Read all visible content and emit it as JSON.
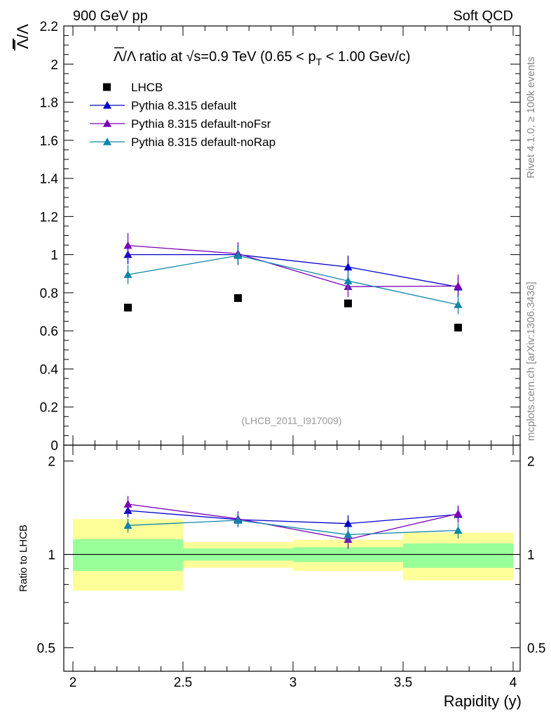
{
  "header": {
    "left": "900 GeV pp",
    "right": "Soft QCD"
  },
  "side_labels": {
    "rivet": "Rivet 4.1.0, ≥ 100k events",
    "mcplots": "mcplots.cern.ch [arXiv:1306.3436]"
  },
  "chart_data": [
    {
      "type": "scatter",
      "panel": "main",
      "title": "Λ̄/Λ ratio at √s=0.9 TeV (0.65 < p_T < 1.00 Gev/c)",
      "title_parts": {
        "lead": "Λ",
        "slash": "/Λ ratio at ",
        "root": "√",
        "s_rest": "s=0.9 TeV (0.65 < p",
        "sub": "T",
        "tail": " < 1.00 Gev/c)"
      },
      "ylabel": "Λ̄/Λ",
      "ylabel_parts": {
        "num": "Λ",
        "den": "/Λ"
      },
      "watermark": "(LHCB_2011_I917009)",
      "ylim": [
        0,
        2.2
      ],
      "y_ticks": [
        "0",
        "0.2",
        "0.4",
        "0.6",
        "0.8",
        "1",
        "1.2",
        "1.4",
        "1.6",
        "1.8",
        "2",
        "2.2"
      ],
      "legend_position": "top-left",
      "series": [
        {
          "name": "LHCB",
          "marker": "square",
          "color": "#000000",
          "x": [
            2.25,
            2.75,
            3.25,
            3.75
          ],
          "y": [
            0.722,
            0.772,
            0.744,
            0.617
          ],
          "err": [
            0.0,
            0.0,
            0.0,
            0.0
          ]
        },
        {
          "name": "Pythia 8.315 default",
          "marker": "triangle",
          "color": "#0000cc",
          "x": [
            2.25,
            2.75,
            3.25,
            3.75
          ],
          "y": [
            1.0,
            1.0,
            0.935,
            0.83
          ],
          "err": [
            0.05,
            0.05,
            0.06,
            0.05
          ]
        },
        {
          "name": "Pythia 8.315 default-noFsr",
          "marker": "triangle",
          "color": "#7a00b8",
          "x": [
            2.25,
            2.75,
            3.25,
            3.75
          ],
          "y": [
            1.048,
            1.005,
            0.832,
            0.835
          ],
          "err": [
            0.065,
            0.06,
            0.055,
            0.06
          ]
        },
        {
          "name": "Pythia 8.315 default-noRap",
          "marker": "triangle",
          "color": "#0f86a8",
          "x": [
            2.25,
            2.75,
            3.25,
            3.75
          ],
          "y": [
            0.895,
            0.995,
            0.862,
            0.737
          ],
          "err": [
            0.05,
            0.05,
            0.05,
            0.05
          ]
        }
      ]
    },
    {
      "type": "scatter",
      "panel": "ratio",
      "ylabel": "Ratio to LHCB",
      "xlabel": "Rapidity (y)",
      "xlim": [
        2,
        4
      ],
      "ylim": [
        0.42,
        2.25
      ],
      "y_scale": "log",
      "x_ticks": [
        "2",
        "2.5",
        "3",
        "3.5",
        "4"
      ],
      "y_ticks": [
        "0.5",
        "1",
        "2"
      ],
      "reference_line": 1,
      "bands": [
        {
          "x0": 2.0,
          "x1": 2.5,
          "green": [
            0.885,
            1.12
          ],
          "yellow": [
            0.765,
            1.3
          ]
        },
        {
          "x0": 2.5,
          "x1": 3.0,
          "green": [
            0.955,
            1.045
          ],
          "yellow": [
            0.905,
            1.095
          ]
        },
        {
          "x0": 3.0,
          "x1": 3.5,
          "green": [
            0.945,
            1.055
          ],
          "yellow": [
            0.885,
            1.115
          ]
        },
        {
          "x0": 3.5,
          "x1": 4.0,
          "green": [
            0.905,
            1.085
          ],
          "yellow": [
            0.825,
            1.175
          ]
        }
      ],
      "band_colors": {
        "green": "#99ff99",
        "yellow": "#ffff99"
      },
      "series": [
        {
          "name": "Pythia 8.315 default",
          "color": "#0000cc",
          "x": [
            2.25,
            2.75,
            3.25,
            3.75
          ],
          "y": [
            1.385,
            1.295,
            1.257,
            1.345
          ],
          "err": [
            0.07,
            0.065,
            0.08,
            0.075
          ]
        },
        {
          "name": "Pythia 8.315 default-noFsr",
          "color": "#7a00b8",
          "x": [
            2.25,
            2.75,
            3.25,
            3.75
          ],
          "y": [
            1.452,
            1.302,
            1.118,
            1.353
          ],
          "err": [
            0.09,
            0.075,
            0.075,
            0.085
          ]
        },
        {
          "name": "Pythia 8.315 default-noRap",
          "color": "#0f86a8",
          "x": [
            2.25,
            2.75,
            3.25,
            3.75
          ],
          "y": [
            1.24,
            1.288,
            1.158,
            1.195
          ],
          "err": [
            0.065,
            0.065,
            0.065,
            0.07
          ]
        }
      ]
    }
  ]
}
